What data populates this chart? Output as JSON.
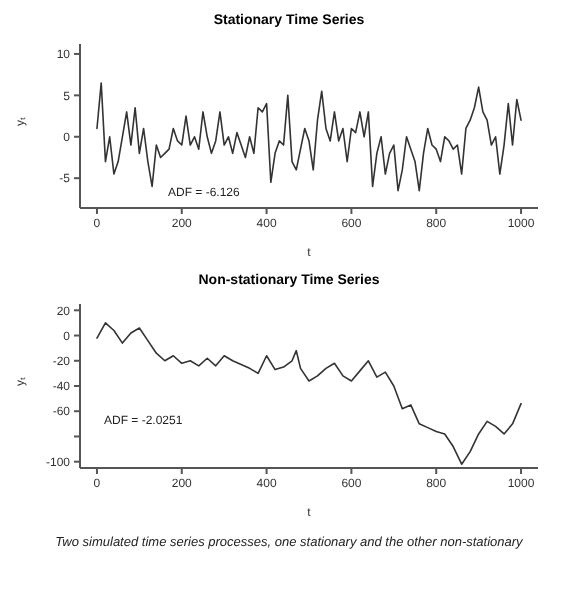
{
  "chart_data": [
    {
      "type": "line",
      "title": "Stationary Time Series",
      "xlabel": "t",
      "ylabel": "yₜ",
      "annotations": [
        "ADF = -6.126"
      ],
      "x": [
        0,
        10,
        20,
        30,
        40,
        50,
        60,
        70,
        80,
        90,
        100,
        110,
        120,
        130,
        140,
        150,
        160,
        170,
        180,
        190,
        200,
        210,
        220,
        230,
        240,
        250,
        260,
        270,
        280,
        290,
        300,
        310,
        320,
        330,
        340,
        350,
        360,
        370,
        380,
        390,
        400,
        410,
        420,
        430,
        440,
        450,
        460,
        470,
        480,
        490,
        500,
        510,
        520,
        530,
        540,
        550,
        560,
        570,
        580,
        590,
        600,
        610,
        620,
        630,
        640,
        650,
        660,
        670,
        680,
        690,
        700,
        710,
        720,
        730,
        740,
        750,
        760,
        770,
        780,
        790,
        800,
        810,
        820,
        830,
        840,
        850,
        860,
        870,
        880,
        890,
        900,
        910,
        920,
        930,
        940,
        950,
        960,
        970,
        980,
        990,
        1000
      ],
      "series": [
        {
          "color": "#333333",
          "values": [
            1,
            6.5,
            -3,
            0,
            -4.5,
            -3,
            0,
            3,
            -1,
            3.5,
            -2,
            1,
            -3,
            -6,
            -1,
            -2.5,
            -2,
            -1.5,
            1,
            -0.5,
            -1,
            2.5,
            -1,
            0,
            -1.5,
            3,
            0,
            -2,
            -0.5,
            3,
            -1,
            0,
            -2,
            0.5,
            -1,
            -2.5,
            0,
            -2,
            3.5,
            3,
            4,
            -5.5,
            -2,
            -0.5,
            -1,
            5,
            -3,
            -4,
            -1.5,
            1,
            -0.5,
            -4,
            2,
            5.5,
            1,
            -0.5,
            3,
            -0.5,
            1,
            -3,
            1,
            0.5,
            3,
            0,
            3,
            -6,
            -2,
            0,
            -4.5,
            -2,
            -1,
            -6.5,
            -4,
            0,
            -1.5,
            -3,
            -6.5,
            -2,
            1,
            -1,
            -1.5,
            -3,
            0,
            -0.5,
            -1.5,
            -1,
            -4.5,
            1,
            2,
            3.5,
            6,
            3,
            2,
            -1,
            0,
            -4.5,
            -1,
            4,
            -1,
            4.5,
            2
          ]
        }
      ],
      "xlim": [
        -40,
        1040
      ],
      "xticks": [
        0,
        200,
        400,
        600,
        800,
        1000
      ],
      "ylim": [
        -8.6,
        11.2
      ],
      "yticks": [
        -5,
        0,
        5,
        10
      ]
    },
    {
      "type": "line",
      "title": "Non-stationary Time Series",
      "xlabel": "t",
      "ylabel": "yₜ",
      "annotations": [
        "ADF = -2.0251",
        "Two simulated time series processes, one stationary and the other non-stationary"
      ],
      "x": [
        0,
        20,
        40,
        60,
        80,
        100,
        120,
        140,
        160,
        180,
        200,
        220,
        240,
        260,
        280,
        300,
        320,
        340,
        360,
        380,
        400,
        420,
        440,
        460,
        470,
        480,
        500,
        520,
        540,
        560,
        580,
        600,
        620,
        640,
        660,
        680,
        700,
        720,
        740,
        760,
        780,
        800,
        820,
        840,
        860,
        880,
        900,
        920,
        940,
        960,
        980,
        1000
      ],
      "series": [
        {
          "color": "#333333",
          "values": [
            -2,
            10,
            4,
            -6,
            2,
            6,
            -4,
            -14,
            -20,
            -16,
            -22,
            -20,
            -24,
            -18,
            -24,
            -16,
            -20,
            -23,
            -26,
            -30,
            -16,
            -27,
            -25,
            -20,
            -12,
            -26,
            -36,
            -32,
            -26,
            -22,
            -32,
            -36,
            -28,
            -20,
            -33,
            -29,
            -40,
            -58,
            -55,
            -70,
            -73,
            -76,
            -78,
            -88,
            -102,
            -92,
            -78,
            -68,
            -72,
            -78,
            -70,
            -54
          ]
        }
      ],
      "xlim": [
        -40,
        1040
      ],
      "xticks": [
        0,
        200,
        400,
        600,
        800,
        1000
      ],
      "ylim": [
        -105,
        25
      ],
      "yticks": [
        -100,
        {
          "value": -80,
          "label": null
        },
        -60,
        -40,
        -20,
        0,
        20
      ]
    }
  ]
}
